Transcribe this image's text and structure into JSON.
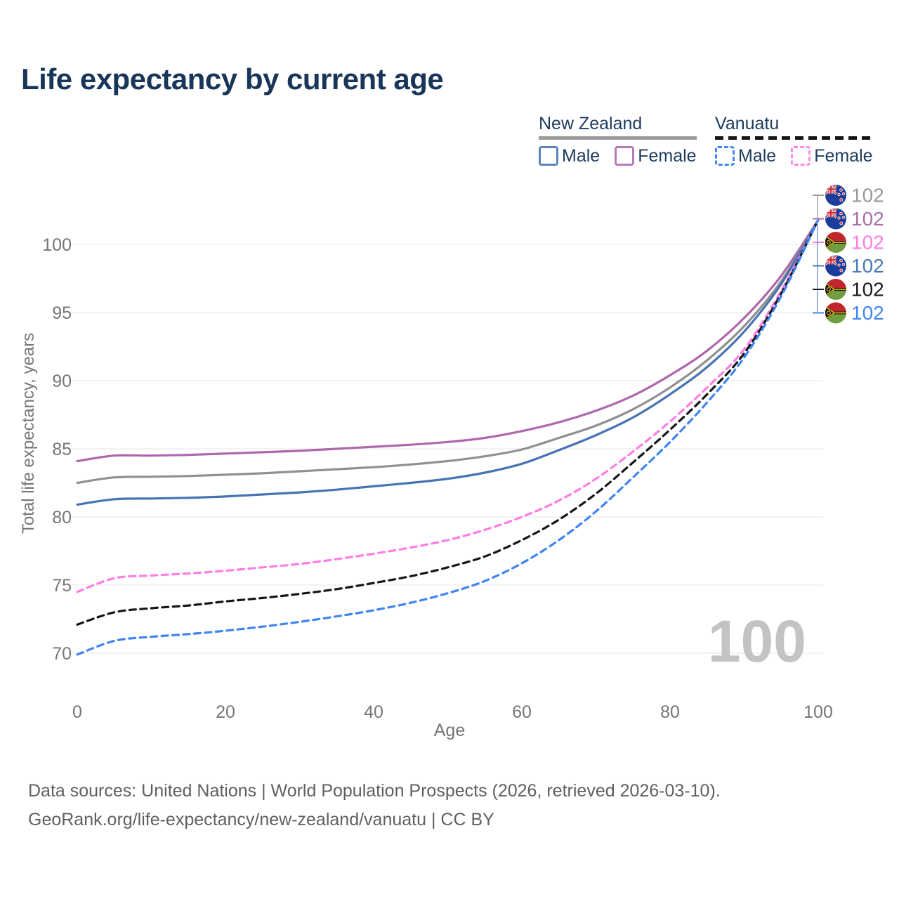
{
  "title": "Life expectancy by current age",
  "legend": {
    "groups": [
      {
        "name": "New Zealand",
        "line_style": "solid",
        "items": [
          {
            "label": "Male",
            "color": "#5b84bd"
          },
          {
            "label": "Female",
            "color": "#b77ab8"
          }
        ]
      },
      {
        "name": "Vanuatu",
        "line_style": "dashed",
        "items": [
          {
            "label": "Male",
            "color": "#4285f4"
          },
          {
            "label": "Female",
            "color": "#fb8ae6"
          }
        ]
      }
    ]
  },
  "chart_data": {
    "type": "line",
    "title": "Life expectancy by current age",
    "xlabel": "Age",
    "ylabel": "Total life expectancy, years",
    "xlim": [
      0,
      100
    ],
    "ylim": [
      68,
      103
    ],
    "x_ticks": [
      0,
      20,
      40,
      60,
      80,
      100
    ],
    "y_ticks": [
      70,
      75,
      80,
      85,
      90,
      95,
      100
    ],
    "grid": "horizontal-only",
    "x": [
      0,
      5,
      10,
      15,
      20,
      25,
      30,
      35,
      40,
      45,
      50,
      55,
      60,
      65,
      70,
      75,
      80,
      85,
      90,
      95,
      100
    ],
    "series": [
      {
        "name": "New Zealand Female",
        "country": "New Zealand",
        "sex": "female",
        "color": "#ae67ad",
        "dash": false,
        "values": [
          84.1,
          84.5,
          84.5,
          84.55,
          84.65,
          84.75,
          84.85,
          85.0,
          85.15,
          85.3,
          85.5,
          85.8,
          86.3,
          86.95,
          87.8,
          88.9,
          90.4,
          92.2,
          94.6,
          97.7,
          101.8
        ]
      },
      {
        "name": "New Zealand All",
        "country": "New Zealand",
        "sex": "all",
        "color": "#909090",
        "dash": false,
        "values": [
          82.5,
          82.9,
          82.95,
          83.0,
          83.1,
          83.2,
          83.35,
          83.5,
          83.65,
          83.85,
          84.1,
          84.45,
          84.95,
          85.8,
          86.7,
          87.9,
          89.5,
          91.5,
          94.0,
          97.3,
          101.8
        ]
      },
      {
        "name": "New Zealand Male",
        "country": "New Zealand",
        "sex": "male",
        "color": "#4673b2",
        "dash": false,
        "values": [
          80.9,
          81.3,
          81.35,
          81.4,
          81.5,
          81.65,
          81.8,
          82.0,
          82.25,
          82.5,
          82.8,
          83.25,
          83.9,
          84.9,
          86.0,
          87.3,
          89.0,
          91.0,
          93.6,
          97.1,
          101.8
        ]
      },
      {
        "name": "Vanuatu Female",
        "country": "Vanuatu",
        "sex": "female",
        "color": "#ff7de4",
        "dash": true,
        "values": [
          74.5,
          75.5,
          75.7,
          75.85,
          76.05,
          76.3,
          76.55,
          76.9,
          77.3,
          77.75,
          78.3,
          79.05,
          80.0,
          81.2,
          82.8,
          84.8,
          87.0,
          89.5,
          92.3,
          96.6,
          101.8
        ]
      },
      {
        "name": "Vanuatu All",
        "country": "Vanuatu",
        "sex": "all",
        "color": "#161616",
        "dash": true,
        "values": [
          72.1,
          73.0,
          73.3,
          73.5,
          73.8,
          74.05,
          74.35,
          74.7,
          75.15,
          75.65,
          76.3,
          77.1,
          78.3,
          79.8,
          81.7,
          84.0,
          86.4,
          89.0,
          92.0,
          96.4,
          101.8
        ]
      },
      {
        "name": "Vanuatu Male",
        "country": "Vanuatu",
        "sex": "male",
        "color": "#4084f4",
        "dash": true,
        "values": [
          69.9,
          70.9,
          71.2,
          71.4,
          71.65,
          71.95,
          72.3,
          72.7,
          73.15,
          73.7,
          74.4,
          75.3,
          76.6,
          78.3,
          80.4,
          82.9,
          85.5,
          88.4,
          91.7,
          96.2,
          101.8
        ]
      }
    ],
    "end_labels": [
      {
        "value": "102",
        "flag": "new-zealand",
        "series": "New Zealand All",
        "color": "#9a9a9a"
      },
      {
        "value": "102",
        "flag": "new-zealand",
        "series": "New Zealand Female",
        "color": "#a96fa9"
      },
      {
        "value": "102",
        "flag": "vanuatu",
        "series": "Vanuatu Female",
        "color": "#ff7ce6"
      },
      {
        "value": "102",
        "flag": "new-zealand",
        "series": "New Zealand Male",
        "color": "#4d7ab5"
      },
      {
        "value": "102",
        "flag": "vanuatu",
        "series": "Vanuatu All",
        "color": "#1a1a1a"
      },
      {
        "value": "102",
        "flag": "vanuatu",
        "series": "Vanuatu Male",
        "color": "#4285f4"
      }
    ]
  },
  "watermark": "100",
  "footer": {
    "line1": "Data sources: United Nations | World Population Prospects (2026, retrieved 2026-03-10).",
    "line2": "GeoRank.org/life-expectancy/new-zealand/vanuatu | CC BY"
  }
}
